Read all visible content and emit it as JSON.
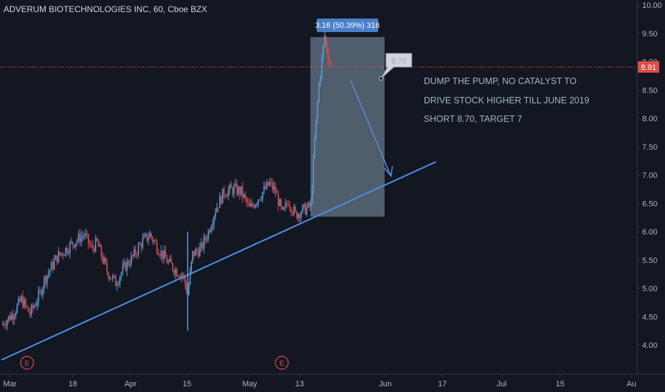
{
  "chart_data": {
    "type": "candlestick",
    "title": "ADVERUM BIOTECHNOLOGIES INC, 60, Cboe BZX",
    "x_tick_labels": [
      "Mar",
      "18",
      "Apr",
      "15",
      "May",
      "13",
      "Jun",
      "17",
      "Jul",
      "15",
      "Au"
    ],
    "y_tick_labels": [
      "4.00",
      "4.50",
      "5.00",
      "5.50",
      "6.00",
      "6.50",
      "7.00",
      "7.50",
      "8.00",
      "8.50",
      "9.00",
      "9.50",
      "10.00"
    ],
    "ylim": [
      3.6,
      10.05
    ],
    "grid": false,
    "colors": {
      "background": "#131722",
      "up": "#5b9bd5",
      "down": "#e04a4a",
      "trendline": "#4f8fe6",
      "price_line": "#e04a4a",
      "measure_box": "#8da3b8",
      "badge": "#4a7fc9",
      "callout": "#d1d4dc"
    },
    "price_path": [
      {
        "x": "Mar 1",
        "y": 4.35
      },
      {
        "x": "Mar 4",
        "y": 4.55
      },
      {
        "x": "Mar 6",
        "y": 4.8
      },
      {
        "x": "Mar 8",
        "y": 4.55
      },
      {
        "x": "Mar 11",
        "y": 4.9
      },
      {
        "x": "Mar 12",
        "y": 5.15
      },
      {
        "x": "Mar 14",
        "y": 5.55
      },
      {
        "x": "Mar 18",
        "y": 5.8
      },
      {
        "x": "Mar 20",
        "y": 5.95
      },
      {
        "x": "Mar 21",
        "y": 5.7
      },
      {
        "x": "Mar 22",
        "y": 5.8
      },
      {
        "x": "Mar 25",
        "y": 5.3
      },
      {
        "x": "Mar 26",
        "y": 5.1
      },
      {
        "x": "Mar 28",
        "y": 5.4
      },
      {
        "x": "Mar 29",
        "y": 5.55
      },
      {
        "x": "Apr 1",
        "y": 5.8
      },
      {
        "x": "Apr 3",
        "y": 5.95
      },
      {
        "x": "Apr 5",
        "y": 5.7
      },
      {
        "x": "Apr 8",
        "y": 5.45
      },
      {
        "x": "Apr 10",
        "y": 5.3
      },
      {
        "x": "Apr 12",
        "y": 5.25
      },
      {
        "x": "Apr 15",
        "y": 4.9
      },
      {
        "x": "Apr 16",
        "y": 5.6
      },
      {
        "x": "Apr 18",
        "y": 5.7
      },
      {
        "x": "Apr 22",
        "y": 6.0
      },
      {
        "x": "Apr 24",
        "y": 6.4
      },
      {
        "x": "Apr 26",
        "y": 6.7
      },
      {
        "x": "Apr 29",
        "y": 6.75
      },
      {
        "x": "May 1",
        "y": 6.7
      },
      {
        "x": "May 3",
        "y": 6.4
      },
      {
        "x": "May 6",
        "y": 6.6
      },
      {
        "x": "May 8",
        "y": 6.85
      },
      {
        "x": "May 9",
        "y": 6.7
      },
      {
        "x": "May 10",
        "y": 6.3
      },
      {
        "x": "May 13",
        "y": 6.55
      },
      {
        "x": "May 14",
        "y": 6.3
      },
      {
        "x": "May 15",
        "y": 6.35
      },
      {
        "x": "May 16",
        "y": 6.4
      },
      {
        "x": "May 17",
        "y": 6.45
      },
      {
        "x": "May 17",
        "y": 7.6
      },
      {
        "x": "May 20",
        "y": 8.6
      },
      {
        "x": "May 20",
        "y": 9.45
      },
      {
        "x": "May 21",
        "y": 9.1
      },
      {
        "x": "May 21",
        "y": 8.91
      }
    ],
    "trendline": {
      "start": {
        "x": "Mar 1",
        "y": 3.75
      },
      "end": {
        "x": "Jun 10",
        "y": 7.25
      }
    },
    "arrow": {
      "start": {
        "x": "May 23",
        "y": 8.65
      },
      "end": {
        "x": "Jun 1",
        "y": 6.95
      }
    },
    "measure_box": {
      "x_start": "May 17",
      "x_end": "May 30",
      "y_low": 6.28,
      "y_high": 9.44
    },
    "current_price": "8.91",
    "measure_badge": "3.16 (50.39%) 316",
    "callout": "8.70",
    "earnings_marker": "E",
    "earnings_dates": [
      "Mar 6",
      "May 10"
    ],
    "annotation_lines": [
      "DUMP THE PUMP,  NO CATALYST TO",
      "DRIVE STOCK HIGHER TILL JUNE 2019",
      "SHORT 8.70,  TARGET 7"
    ]
  }
}
